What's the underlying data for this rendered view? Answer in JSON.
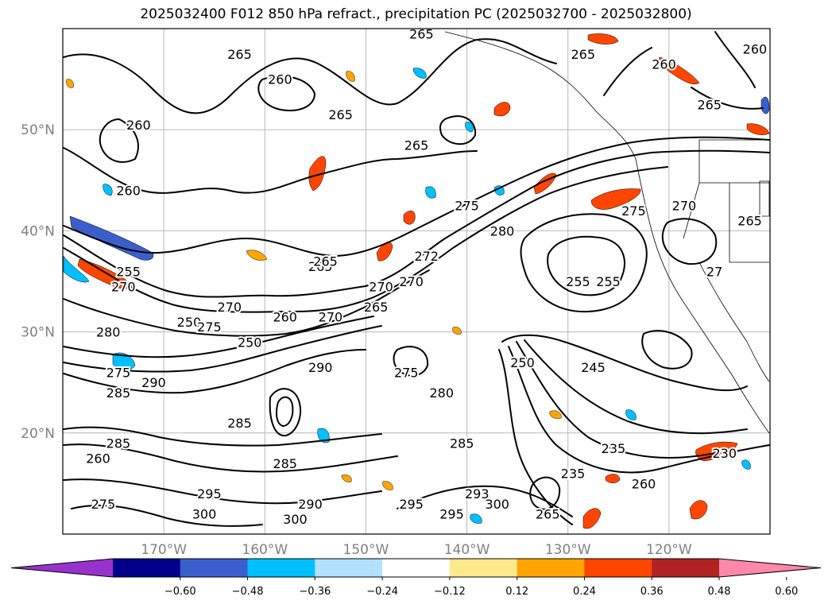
{
  "title": "2025032400 F012 850 hPa refract., precipitation PC (2025032700 - 2025032800)",
  "map": {
    "lon_range": [
      -180,
      -110
    ],
    "lat_range": [
      10,
      60
    ],
    "lat_ticks": [
      {
        "value": 20,
        "label": "20°N"
      },
      {
        "value": 30,
        "label": "30°N"
      },
      {
        "value": 40,
        "label": "40°N"
      },
      {
        "value": 50,
        "label": "50°N"
      }
    ],
    "lon_ticks": [
      {
        "value": -170,
        "label": "170°W"
      },
      {
        "value": -160,
        "label": "160°W"
      },
      {
        "value": -150,
        "label": "150°W"
      },
      {
        "value": -140,
        "label": "140°W"
      },
      {
        "value": -130,
        "label": "130°W"
      },
      {
        "value": -120,
        "label": "120°W"
      }
    ],
    "grid": true,
    "contour_labels": [
      {
        "text": "265",
        "lon": -144.5,
        "lat": 59.5
      },
      {
        "text": "265",
        "lon": -162.5,
        "lat": 57.5
      },
      {
        "text": "260",
        "lon": -158.5,
        "lat": 55.0
      },
      {
        "text": "260",
        "lon": -172.5,
        "lat": 50.5
      },
      {
        "text": "265",
        "lon": -152.5,
        "lat": 51.5
      },
      {
        "text": "265",
        "lon": -145.0,
        "lat": 48.5
      },
      {
        "text": "265",
        "lon": -128.5,
        "lat": 57.5
      },
      {
        "text": "260",
        "lon": -120.5,
        "lat": 56.5
      },
      {
        "text": "260",
        "lon": -111.5,
        "lat": 58.0
      },
      {
        "text": "265",
        "lon": -116.0,
        "lat": 52.5
      },
      {
        "text": "270",
        "lon": -118.5,
        "lat": 42.5
      },
      {
        "text": "275",
        "lon": -123.5,
        "lat": 42.0
      },
      {
        "text": "265",
        "lon": -112.0,
        "lat": 41.0
      },
      {
        "text": "275",
        "lon": -140.0,
        "lat": 42.5
      },
      {
        "text": "280",
        "lon": -136.5,
        "lat": 40.0
      },
      {
        "text": "255",
        "lon": -129.0,
        "lat": 35.0
      },
      {
        "text": "255",
        "lon": -126.0,
        "lat": 35.0
      },
      {
        "text": "27",
        "lon": -115.5,
        "lat": 36.0
      },
      {
        "text": "272",
        "lon": -144.0,
        "lat": 37.5
      },
      {
        "text": "270",
        "lon": -145.5,
        "lat": 35.0
      },
      {
        "text": "270",
        "lon": -148.5,
        "lat": 34.5
      },
      {
        "text": "265",
        "lon": -154.5,
        "lat": 36.5
      },
      {
        "text": "265",
        "lon": -149.0,
        "lat": 32.5
      },
      {
        "text": "270",
        "lon": -163.5,
        "lat": 32.5
      },
      {
        "text": "260",
        "lon": -158.0,
        "lat": 31.5
      },
      {
        "text": "270",
        "lon": -153.5,
        "lat": 31.5
      },
      {
        "text": "250",
        "lon": -161.5,
        "lat": 29.0
      },
      {
        "text": "255",
        "lon": -173.5,
        "lat": 36.0
      },
      {
        "text": "270",
        "lon": -174.0,
        "lat": 34.5
      },
      {
        "text": "250",
        "lon": -167.5,
        "lat": 31.0
      },
      {
        "text": "275",
        "lon": -165.5,
        "lat": 30.5
      },
      {
        "text": "280",
        "lon": -175.5,
        "lat": 30.0
      },
      {
        "text": "290",
        "lon": -154.5,
        "lat": 26.5
      },
      {
        "text": "275",
        "lon": -146.0,
        "lat": 26.0
      },
      {
        "text": "280",
        "lon": -142.5,
        "lat": 24.0
      },
      {
        "text": "250",
        "lon": -134.5,
        "lat": 27.0
      },
      {
        "text": "245",
        "lon": -127.5,
        "lat": 26.5
      },
      {
        "text": "290",
        "lon": -171.0,
        "lat": 25.0
      },
      {
        "text": "285",
        "lon": -174.5,
        "lat": 24.0
      },
      {
        "text": "275",
        "lon": -174.5,
        "lat": 26.0
      },
      {
        "text": "285",
        "lon": -162.5,
        "lat": 21.0
      },
      {
        "text": "285",
        "lon": -158.0,
        "lat": 17.0
      },
      {
        "text": "285",
        "lon": -140.5,
        "lat": 19.0
      },
      {
        "text": "285",
        "lon": -174.5,
        "lat": 19.0
      },
      {
        "text": "260",
        "lon": -176.5,
        "lat": 17.5
      },
      {
        "text": "235",
        "lon": -125.5,
        "lat": 18.5
      },
      {
        "text": "230",
        "lon": -114.5,
        "lat": 18.0
      },
      {
        "text": "235",
        "lon": -129.5,
        "lat": 16.0
      },
      {
        "text": "295",
        "lon": -165.5,
        "lat": 14.0
      },
      {
        "text": "293",
        "lon": -139.0,
        "lat": 14.0
      },
      {
        "text": "295",
        "lon": -145.5,
        "lat": 13.0
      },
      {
        "text": "290",
        "lon": -155.5,
        "lat": 13.0
      },
      {
        "text": "300",
        "lon": -166.0,
        "lat": 12.0
      },
      {
        "text": "300",
        "lon": -157.0,
        "lat": 11.5
      },
      {
        "text": "300",
        "lon": -137.0,
        "lat": 13.0
      },
      {
        "text": "295",
        "lon": -141.5,
        "lat": 12.0
      },
      {
        "text": "265",
        "lon": -132.0,
        "lat": 12.0
      },
      {
        "text": "260",
        "lon": -122.5,
        "lat": 15.0
      },
      {
        "text": "275",
        "lon": -176.0,
        "lat": 13.0
      },
      {
        "text": "260",
        "lon": -173.5,
        "lat": 44.0
      },
      {
        "text": "265",
        "lon": -154.0,
        "lat": 37.0
      }
    ]
  },
  "colorbar": {
    "levels": [
      -0.6,
      -0.48,
      -0.36,
      -0.24,
      -0.12,
      0.12,
      0.24,
      0.36,
      0.48,
      0.6
    ],
    "tick_labels": [
      "−0.60",
      "−0.48",
      "−0.36",
      "−0.24",
      "−0.12",
      "0.12",
      "0.24",
      "0.36",
      "0.48",
      "0.60"
    ],
    "colors": [
      "#9932cc",
      "#00008b",
      "#3a5fcd",
      "#00bfff",
      "#b0e2ff",
      "#ffffff",
      "#fee98b",
      "#ffa500",
      "#ff4500",
      "#b22222",
      "#ff88aa"
    ],
    "extend": "both"
  }
}
